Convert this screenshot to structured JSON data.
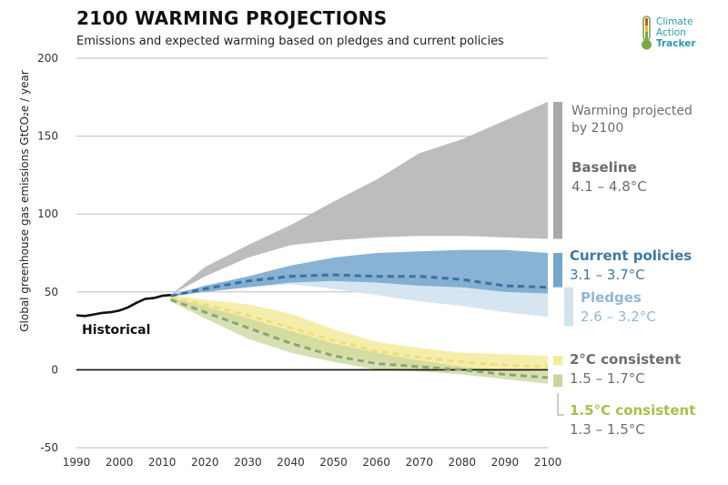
{
  "header": {
    "title": "2100 WARMING PROJECTIONS",
    "subtitle": "Emissions and expected warming based on pledges and current policies"
  },
  "logo": {
    "line1": "Climate",
    "line2": "Action",
    "line3": "Tracker"
  },
  "colors": {
    "baseline": "#b9b9bb",
    "baseline_bar": "#a9a9ab",
    "current": "#74a6cc",
    "current_dash": "#3d6fa0",
    "pledges": "#d2e3f0",
    "pledges_text": "#8fb8dc",
    "two_deg": "#f3eb9c",
    "two_deg_dash": "#ebe07a",
    "one5_deg": "#c9d69b",
    "one5_dash": "#8aa76a",
    "historical": "#111111",
    "label_gray": "#6d6d6d",
    "label_blue": "#3d78a8",
    "label_green": "#a8c04c"
  },
  "chart_data": {
    "type": "area",
    "title": "2100 WARMING PROJECTIONS",
    "subtitle": "Emissions and expected warming based on pledges and current policies",
    "ylabel": "Global greenhouse gas emissions  GtCO₂e / year",
    "xlabel": "",
    "xlim": [
      1990,
      2100
    ],
    "ylim": [
      -50,
      200
    ],
    "x_ticks": [
      1990,
      2000,
      2010,
      2020,
      2030,
      2040,
      2050,
      2060,
      2070,
      2080,
      2090,
      2100
    ],
    "y_ticks": [
      -50,
      0,
      50,
      100,
      150,
      200
    ],
    "grid": "horizontal",
    "series": [
      {
        "name": "Historical",
        "kind": "line",
        "x": [
          1990,
          1992,
          1994,
          1996,
          1998,
          2000,
          2002,
          2004,
          2006,
          2008,
          2010,
          2012
        ],
        "y": [
          35,
          34.5,
          35.5,
          36.5,
          37,
          38,
          40,
          43,
          45.5,
          46,
          47.5,
          48
        ]
      },
      {
        "name": "Baseline",
        "kind": "band",
        "x": [
          2012,
          2020,
          2030,
          2040,
          2050,
          2060,
          2070,
          2080,
          2090,
          2100
        ],
        "low": [
          48,
          60,
          72,
          80,
          83,
          85,
          86,
          86,
          85,
          84
        ],
        "high": [
          48,
          66,
          80,
          93,
          108,
          122,
          139,
          148,
          160,
          172
        ]
      },
      {
        "name": "Current policies",
        "kind": "band",
        "x": [
          2012,
          2020,
          2030,
          2040,
          2050,
          2060,
          2070,
          2080,
          2090,
          2100
        ],
        "low": [
          47,
          50,
          53,
          56,
          57,
          56,
          54,
          53,
          50,
          49
        ],
        "high": [
          48,
          54,
          60,
          67,
          72,
          75,
          76,
          77,
          77,
          75
        ],
        "median": [
          47.5,
          52,
          57,
          60,
          61,
          60,
          60,
          58,
          54,
          53
        ]
      },
      {
        "name": "Pledges",
        "kind": "band",
        "x": [
          2012,
          2020,
          2030,
          2040,
          2050,
          2060,
          2070,
          2080,
          2090,
          2100
        ],
        "low": [
          47,
          50,
          53,
          55,
          52,
          48,
          44,
          41,
          37,
          34
        ],
        "high": [
          48,
          54,
          58,
          62,
          62,
          61,
          59,
          57,
          55,
          53
        ]
      },
      {
        "name": "2°C consistent",
        "kind": "band",
        "x": [
          2012,
          2020,
          2030,
          2040,
          2050,
          2060,
          2070,
          2080,
          2090,
          2100
        ],
        "low": [
          45,
          38,
          28,
          18,
          10,
          6,
          2,
          0,
          -1,
          -1
        ],
        "high": [
          48,
          45,
          42,
          36,
          26,
          18,
          14,
          11,
          10,
          9
        ],
        "median": [
          46,
          42,
          35,
          27,
          19,
          12,
          8,
          5,
          3,
          2
        ]
      },
      {
        "name": "1.5°C consistent",
        "kind": "band",
        "x": [
          2012,
          2020,
          2030,
          2040,
          2050,
          2060,
          2070,
          2080,
          2090,
          2100
        ],
        "low": [
          44,
          33,
          20,
          11,
          5,
          0,
          -1,
          -3,
          -6,
          -9
        ],
        "high": [
          46,
          41,
          33,
          25,
          17,
          11,
          6,
          2,
          0,
          -1
        ],
        "median": [
          45,
          37,
          27,
          17,
          9,
          4,
          2,
          0,
          -3,
          -5
        ]
      }
    ],
    "annotations": {
      "historical": "Historical",
      "warming_header": "Warming projected\nby 2100",
      "baseline": {
        "name": "Baseline",
        "range": "4.1 – 4.8°C"
      },
      "current": {
        "name": "Current policies",
        "range": "3.1 – 3.7°C"
      },
      "pledges": {
        "name": "Pledges",
        "range": "2.6 – 3.2°C"
      },
      "two_deg": {
        "name": "2°C consistent",
        "range": "1.5 – 1.7°C"
      },
      "one5_deg": {
        "name": "1.5°C consistent",
        "range": "1.3 – 1.5°C"
      }
    }
  }
}
